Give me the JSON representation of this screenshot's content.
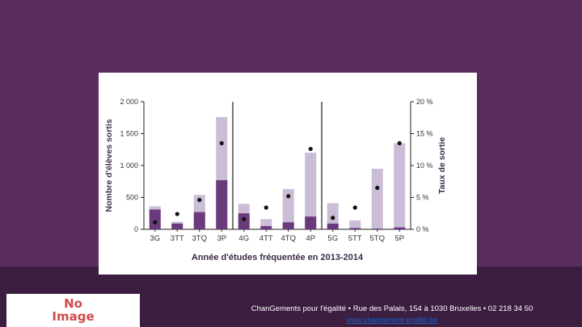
{
  "footer": {
    "text": "ChanGements pour l'égalité • Rue des Palais, 154 à 1030 Bruxelles • 02 218 34 50",
    "link": "www.changement-egalite.be"
  },
  "logo": {
    "line1": "No",
    "line2": "Image"
  },
  "chart_data": {
    "type": "bar",
    "xlabel": "Année d'études fréquentée en 2013-2014",
    "ylabel": "Nombre d'élèves sortis",
    "y2label": "Taux de sortie",
    "ylim": [
      0,
      2000
    ],
    "y2lim": [
      0,
      20
    ],
    "yticks": [
      "0",
      "500",
      "1 000",
      "1 500",
      "2 000"
    ],
    "y2ticks": [
      "0 %",
      "5 %",
      "10 %",
      "15 %",
      "20 %"
    ],
    "categories": [
      "3G",
      "3TT",
      "3TQ",
      "3P",
      "4G",
      "4TT",
      "4TQ",
      "4P",
      "5G",
      "5TT",
      "5TQ",
      "5P"
    ],
    "groups": [
      [
        0,
        3
      ],
      [
        4,
        7
      ],
      [
        8,
        11
      ]
    ],
    "series": [
      {
        "values": [
          360,
          120,
          540,
          1760,
          400,
          160,
          630,
          1200,
          410,
          140,
          950,
          1350
        ],
        "color": "#cbbdd6"
      },
      {
        "values": [
          310,
          90,
          270,
          770,
          250,
          50,
          110,
          200,
          90,
          20,
          10,
          30
        ],
        "color": "#6b3a7c"
      },
      {
        "values": [
          1.1,
          2.4,
          4.6,
          13.5,
          1.6,
          3.4,
          5.2,
          12.6,
          1.8,
          3.4,
          6.5,
          13.5
        ],
        "color": "#111111",
        "marker": "dot",
        "axis": "right"
      }
    ],
    "grid": false,
    "colors": {
      "light": "#cbbdd6",
      "dark": "#6b3a7c",
      "dot": "#111111"
    }
  }
}
